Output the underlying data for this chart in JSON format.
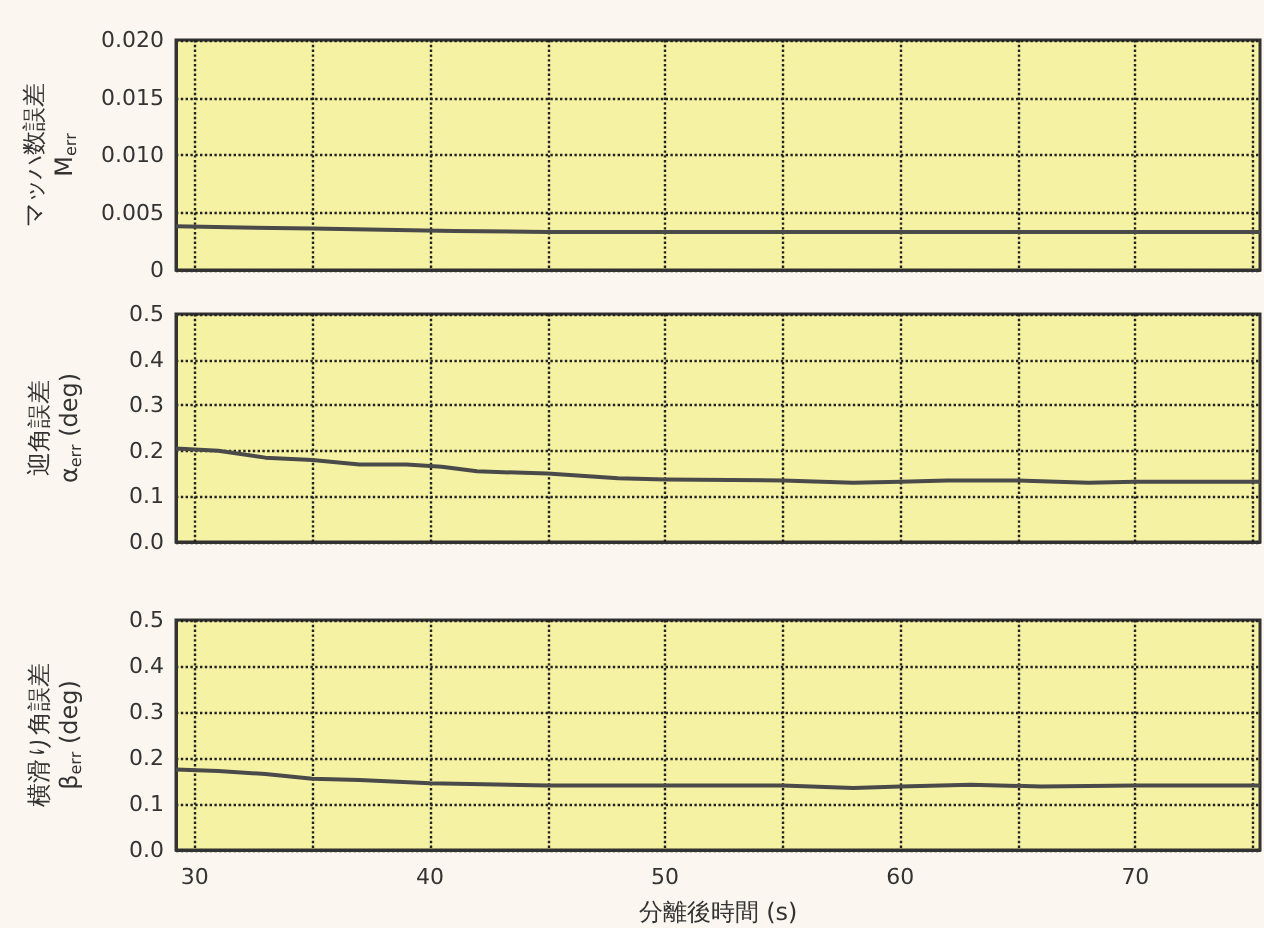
{
  "chart_data": [
    {
      "type": "line",
      "ylabel": "マッハ数誤差\nM$_{err}$",
      "x": [
        29.2,
        32,
        35,
        38,
        41,
        45,
        50,
        55,
        60,
        65,
        70,
        75.3
      ],
      "series": [
        {
          "color": "#4a4a4a",
          "values": [
            0.0038,
            0.0037,
            0.0036,
            0.0035,
            0.0034,
            0.0033,
            0.0033,
            0.0033,
            0.0033,
            0.0033,
            0.0033,
            0.0033
          ]
        }
      ],
      "xlim": [
        29.2,
        75.3
      ],
      "xticks": [
        30,
        {
          "value": 35,
          "label": null
        },
        40,
        {
          "value": 45,
          "label": null
        },
        50,
        {
          "value": 55,
          "label": null
        },
        60,
        {
          "value": 65,
          "label": null
        },
        70,
        {
          "value": 75,
          "label": null
        }
      ],
      "ylim": [
        0,
        0.02
      ],
      "yticks": [
        {
          "value": 0,
          "label": "0"
        },
        {
          "value": 0.005,
          "label": "0.005"
        },
        {
          "value": 0.01,
          "label": "0.010"
        },
        {
          "value": 0.015,
          "label": "0.015"
        },
        {
          "value": 0.02,
          "label": "0.020"
        }
      ],
      "grid": true,
      "tick_labels": "y"
    },
    {
      "type": "line",
      "ylabel": "迎角誤差\nα$_{err}$ (deg)",
      "x": [
        29.2,
        31,
        33,
        35,
        37,
        39,
        40.5,
        42,
        45,
        48,
        50,
        55,
        58,
        60,
        62,
        65,
        68,
        70,
        75.3
      ],
      "series": [
        {
          "color": "#4a4a4a",
          "values": [
            0.205,
            0.2,
            0.185,
            0.18,
            0.17,
            0.17,
            0.165,
            0.155,
            0.15,
            0.14,
            0.137,
            0.135,
            0.13,
            0.132,
            0.135,
            0.135,
            0.13,
            0.132,
            0.132
          ]
        }
      ],
      "xlim": [
        29.2,
        75.3
      ],
      "xticks": [
        30,
        {
          "value": 35,
          "label": null
        },
        40,
        {
          "value": 45,
          "label": null
        },
        50,
        {
          "value": 55,
          "label": null
        },
        60,
        {
          "value": 65,
          "label": null
        },
        70,
        {
          "value": 75,
          "label": null
        }
      ],
      "ylim": [
        0,
        0.5
      ],
      "yticks": [
        {
          "value": 0,
          "label": "0.0"
        },
        0.1,
        0.2,
        0.3,
        0.4,
        0.5
      ],
      "grid": true,
      "tick_labels": "y"
    },
    {
      "type": "line",
      "ylabel": "横滑り角誤差\nβ$_{err}$ (deg)",
      "xlabel": "分離後時間 (s)",
      "x": [
        29.2,
        31,
        33,
        35,
        37,
        40,
        45,
        50,
        55,
        58,
        60,
        63,
        66,
        70,
        75.3
      ],
      "series": [
        {
          "color": "#4a4a4a",
          "values": [
            0.175,
            0.172,
            0.165,
            0.155,
            0.152,
            0.145,
            0.14,
            0.14,
            0.14,
            0.135,
            0.138,
            0.142,
            0.138,
            0.14,
            0.14
          ]
        }
      ],
      "xlim": [
        29.2,
        75.3
      ],
      "xticks": [
        30,
        {
          "value": 35,
          "label": null
        },
        40,
        {
          "value": 45,
          "label": null
        },
        50,
        {
          "value": 55,
          "label": null
        },
        60,
        {
          "value": 65,
          "label": null
        },
        70,
        {
          "value": 75,
          "label": null
        }
      ],
      "ylim": [
        0,
        0.5
      ],
      "yticks": [
        {
          "value": 0,
          "label": "0.0"
        },
        0.1,
        0.2,
        0.3,
        0.4,
        0.5
      ],
      "grid": true
    }
  ]
}
